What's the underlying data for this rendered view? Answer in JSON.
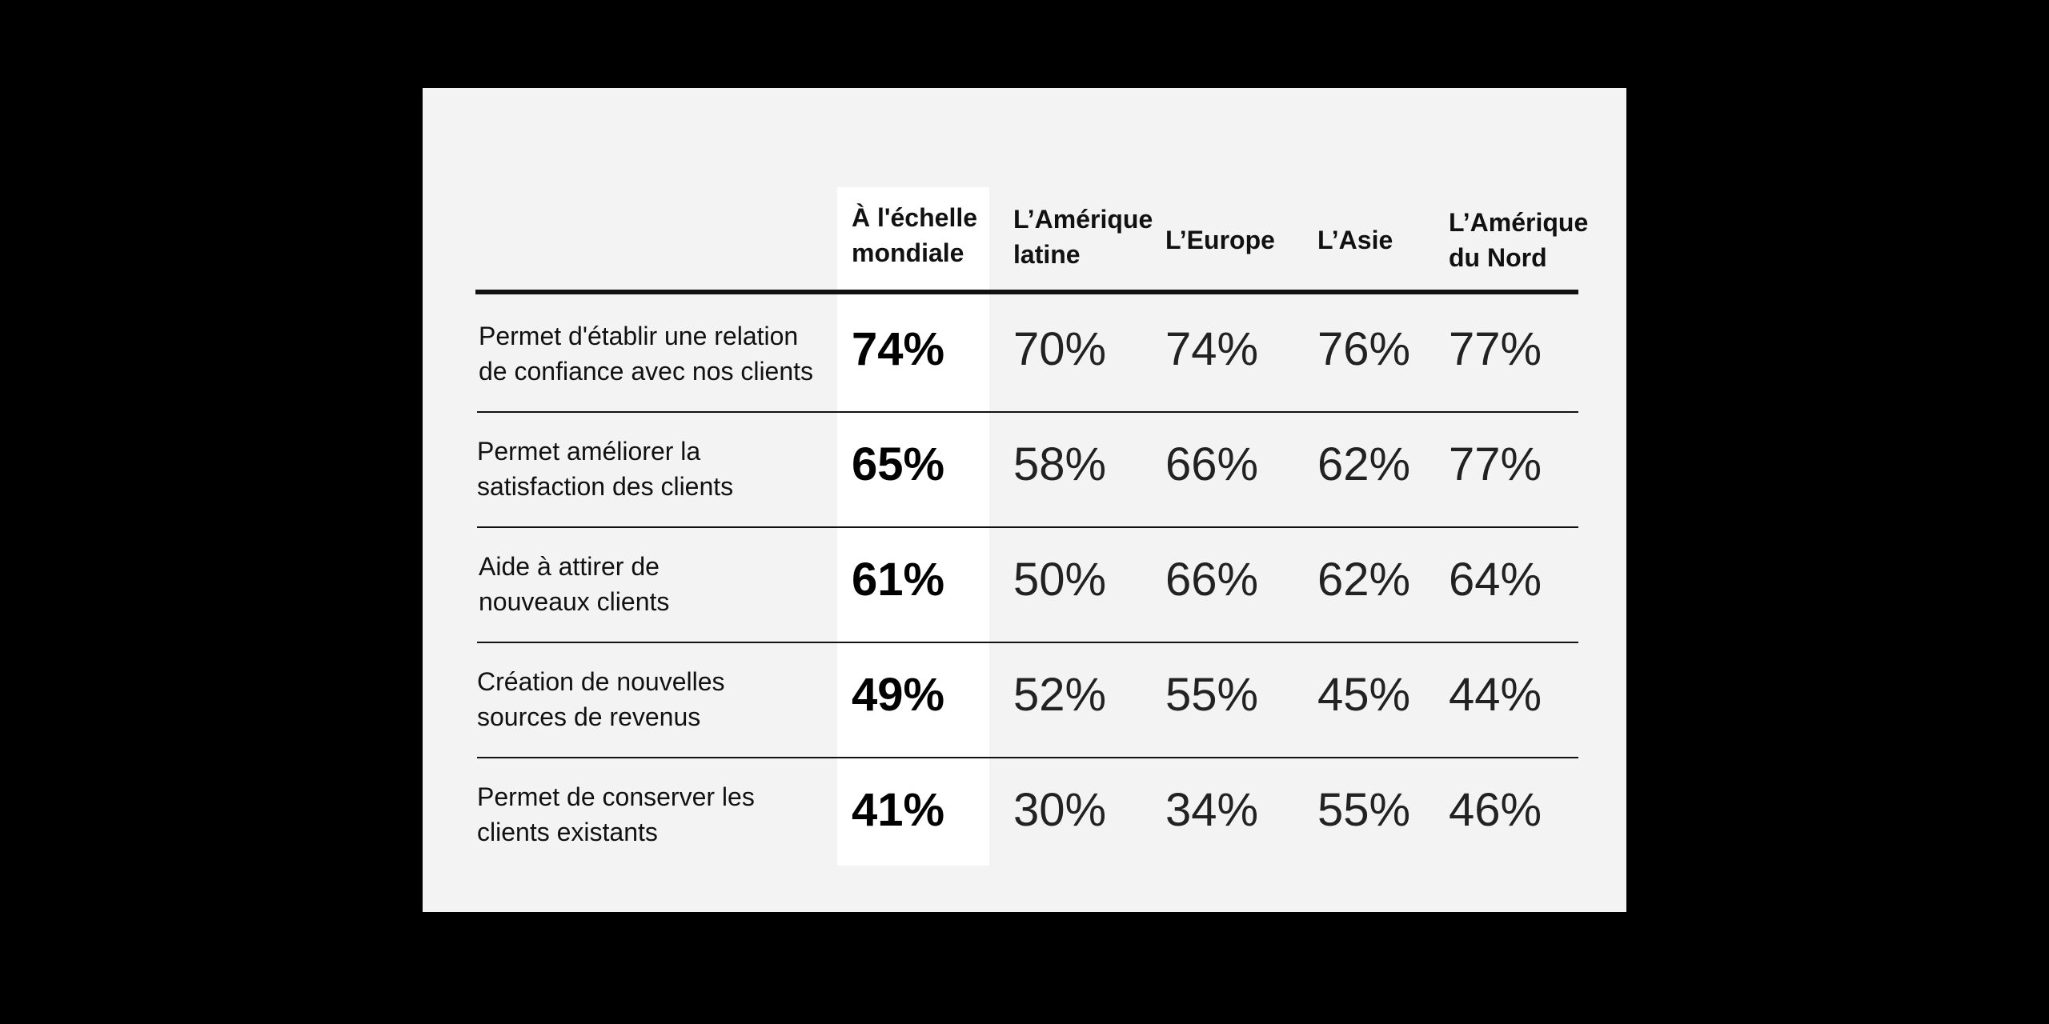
{
  "chart_data": {
    "type": "table",
    "columns": [
      "À l'échelle\nmondiale",
      "L’Amérique\nlatine",
      "L’Europe",
      "L’Asie",
      "L’Amérique\ndu Nord"
    ],
    "rows": [
      {
        "label": "Permet d'établir une relation\nde confiance avec nos clients",
        "values": [
          "74%",
          "70%",
          "74%",
          "76%",
          "77%"
        ]
      },
      {
        "label": "Permet améliorer la\nsatisfaction des clients",
        "values": [
          "65%",
          "58%",
          "66%",
          "62%",
          "77%"
        ]
      },
      {
        "label": "Aide à attirer de\nnouveaux clients",
        "values": [
          "61%",
          "50%",
          "66%",
          "62%",
          "64%"
        ]
      },
      {
        "label": "Création de nouvelles\nsources de revenus",
        "values": [
          "49%",
          "52%",
          "55%",
          "45%",
          "44%"
        ]
      },
      {
        "label": "Permet de conserver les\nclients existants",
        "values": [
          "41%",
          "30%",
          "34%",
          "55%",
          "46%"
        ]
      }
    ],
    "highlighted_column": "À l'échelle\nmondiale"
  },
  "colors": {
    "background": "#000000",
    "card": "#f3f3f3",
    "highlight": "#ffffff",
    "text": "#111111"
  }
}
